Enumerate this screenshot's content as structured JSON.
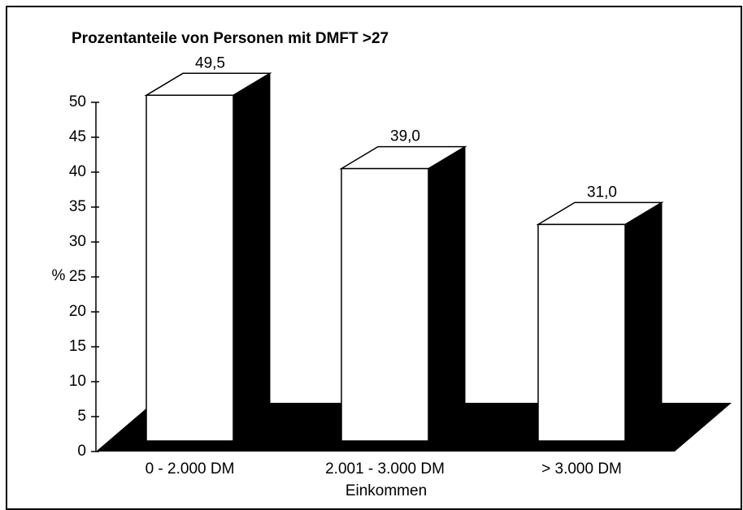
{
  "chart_data": {
    "type": "bar3d",
    "title": "Prozentanteile von Personen mit DMFT >27",
    "categories": [
      "0 - 2.000 DM",
      "2.001 - 3.000 DM",
      "> 3.000 DM"
    ],
    "values": [
      49.5,
      39.0,
      31.0
    ],
    "value_labels": [
      "49,5",
      "39,0",
      "31,0"
    ],
    "xlabel": "Einkommen",
    "ylabel": "%",
    "ylim": [
      0,
      50
    ],
    "yticks": [
      0,
      5,
      10,
      15,
      20,
      25,
      30,
      35,
      40,
      45,
      50
    ],
    "color": "#ffffff",
    "side_color": "#000000"
  }
}
